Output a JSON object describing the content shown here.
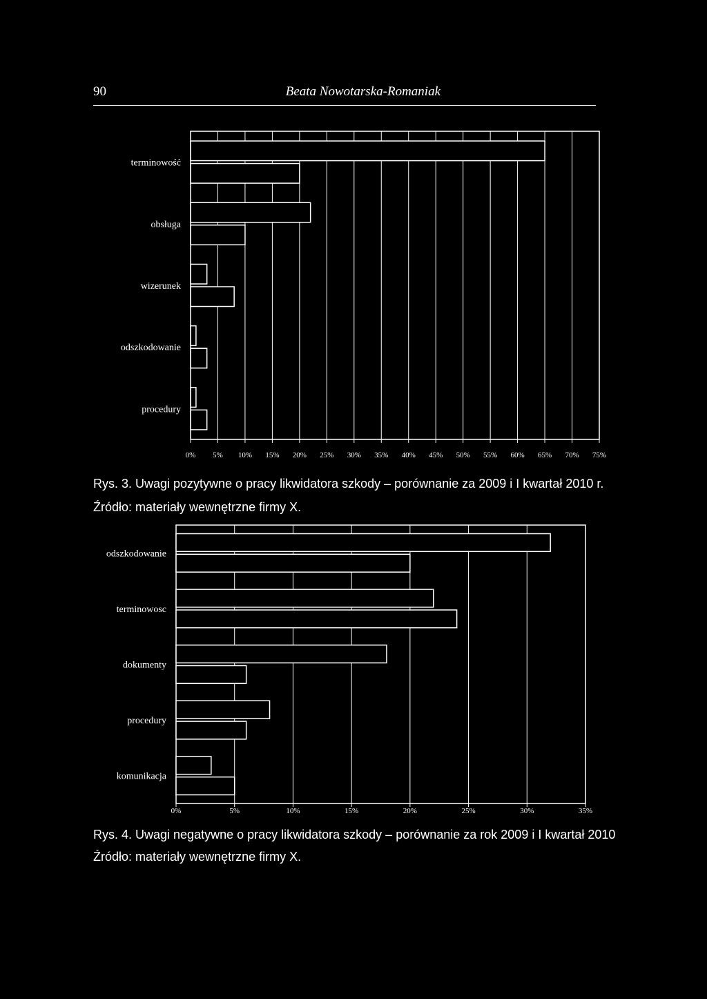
{
  "header": {
    "page_number": "90",
    "author": "Beata Nowotarska-Romaniak"
  },
  "figures": [
    {
      "caption": "Rys. 3. Uwagi pozytywne o pracy likwidatora szkody – porównanie za 2009 i I kwartał 2010 r.",
      "source": "Źródło: materiały wewnętrzne firmy X."
    },
    {
      "caption": "Rys. 4. Uwagi negatywne o pracy likwidatora szkody – porównanie za rok 2009 i I kwartał 2010",
      "source": "Źródło: materiały wewnętrzne firmy X."
    }
  ],
  "chart_data": [
    {
      "type": "bar",
      "orientation": "horizontal",
      "categories": [
        "terminowość",
        "obsługa",
        "wizerunek",
        "odszkodowanie",
        "procedury"
      ],
      "series": [
        {
          "values": [
            65,
            22,
            3,
            1,
            1
          ]
        },
        {
          "values": [
            20,
            10,
            8,
            3,
            3
          ]
        }
      ],
      "xlim": [
        0,
        75
      ],
      "xticks": [
        "0%",
        "5%",
        "10%",
        "15%",
        "20%",
        "25%",
        "30%",
        "35%",
        "40%",
        "45%",
        "50%",
        "55%",
        "60%",
        "65%",
        "70%",
        "75%"
      ],
      "grid": true,
      "colors": {
        "background": "#000000",
        "lines": "#ffffff"
      }
    },
    {
      "type": "bar",
      "orientation": "horizontal",
      "categories": [
        "odszkodowanie",
        "terminowosc",
        "dokumenty",
        "procedury",
        "komunikacja"
      ],
      "series": [
        {
          "values": [
            32,
            22,
            18,
            8,
            3
          ]
        },
        {
          "values": [
            20,
            24,
            6,
            6,
            5
          ]
        }
      ],
      "xlim": [
        0,
        35
      ],
      "xticks": [
        "0%",
        "5%",
        "10%",
        "15%",
        "20%",
        "25%",
        "30%",
        "35%"
      ],
      "grid": true,
      "colors": {
        "background": "#000000",
        "lines": "#ffffff"
      }
    }
  ]
}
